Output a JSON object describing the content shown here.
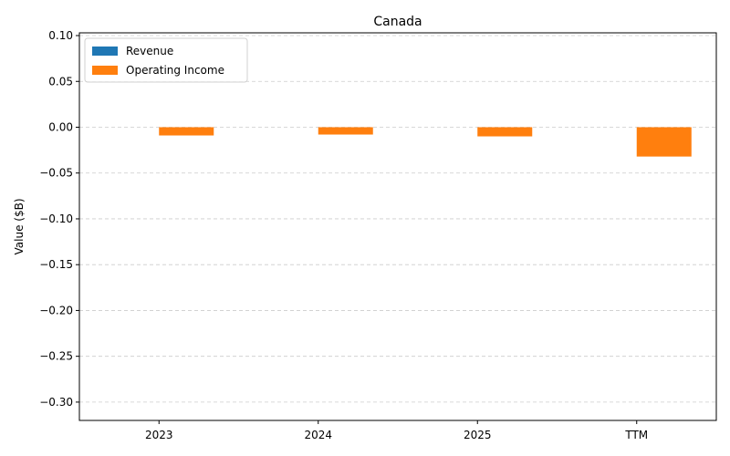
{
  "chart_data": {
    "type": "bar",
    "title": "Canada",
    "xlabel": "",
    "ylabel": "Value ($B)",
    "categories": [
      "2023",
      "2024",
      "2025",
      "TTM"
    ],
    "series": [
      {
        "name": "Revenue",
        "color": "#1f77b4",
        "values": [
          0,
          0,
          0,
          0
        ]
      },
      {
        "name": "Operating Income",
        "color": "#ff7f0e",
        "values": [
          -0.009,
          -0.008,
          -0.01,
          -0.032
        ]
      }
    ],
    "ylim": [
      -0.32,
      0.103
    ],
    "yticks": [
      0.1,
      0.05,
      0.0,
      -0.05,
      -0.1,
      -0.15,
      -0.2,
      -0.25,
      -0.3
    ],
    "ytick_labels": [
      "0.10",
      "0.05",
      "0.00",
      "−0.05",
      "−0.10",
      "−0.15",
      "−0.20",
      "−0.25",
      "−0.30"
    ],
    "grid": "y-dashed",
    "legend_position": "top-left"
  }
}
